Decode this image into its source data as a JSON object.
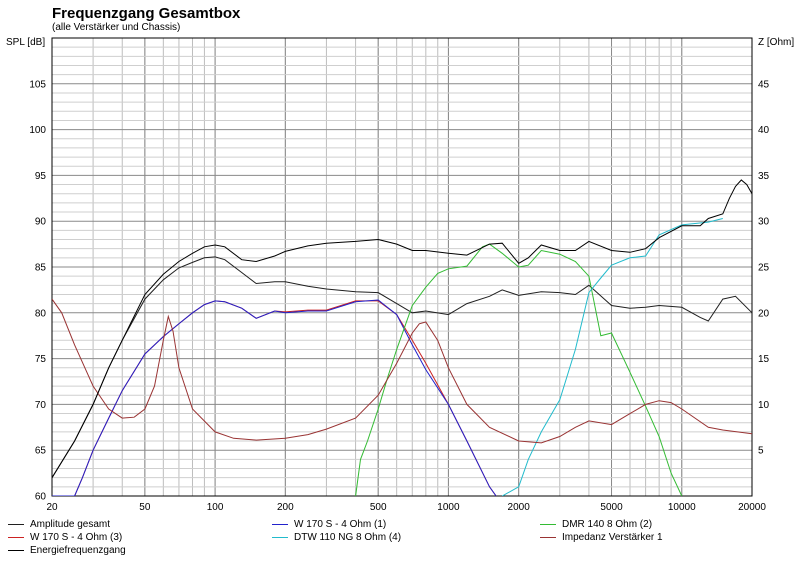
{
  "chart_data": {
    "type": "line",
    "title": "Frequenzgang Gesamtbox",
    "subtitle": "(alle Verstärker und Chassis)",
    "ylabel": "SPL [dB]",
    "y2label": "Z [Ohm]",
    "xscale": "log",
    "xlim": [
      20,
      20000
    ],
    "ylim": [
      60,
      110
    ],
    "y2lim": [
      0,
      50
    ],
    "x_ticks": [
      20,
      50,
      100,
      200,
      500,
      1000,
      2000,
      5000,
      10000,
      20000
    ],
    "x_tick_labels": [
      "20",
      "50",
      "100",
      "200",
      "500",
      "1000",
      "2000",
      "5000",
      "10000",
      "20000"
    ],
    "y_ticks": [
      60,
      65,
      70,
      75,
      80,
      85,
      90,
      95,
      100,
      105
    ],
    "y_tick_labels": [
      "60",
      "65",
      "70",
      "75",
      "80",
      "85",
      "90",
      "95",
      "100",
      "105"
    ],
    "y2_ticks": [
      5,
      10,
      15,
      20,
      25,
      30,
      35,
      40,
      45
    ],
    "y2_tick_labels": [
      "5",
      "10",
      "15",
      "20",
      "25",
      "30",
      "35",
      "40",
      "45"
    ],
    "grid": true,
    "legend_position": "bottom",
    "series": [
      {
        "name": "Amplitude gesamt",
        "color": "#202020",
        "axis": "spl",
        "x": [
          20,
          25,
          30,
          35,
          40,
          50,
          60,
          70,
          80,
          90,
          100,
          110,
          130,
          150,
          180,
          200,
          250,
          300,
          400,
          500,
          600,
          700,
          800,
          1000,
          1200,
          1500,
          1700,
          2000,
          2500,
          3000,
          3500,
          4000,
          5000,
          6000,
          7000,
          8000,
          10000,
          12000,
          13000,
          15000,
          17000,
          20000
        ],
        "y": [
          62,
          66,
          70,
          74,
          77,
          81.5,
          83.6,
          84.9,
          85.5,
          86,
          86.1,
          85.8,
          84.4,
          83.2,
          83.4,
          83.4,
          82.9,
          82.6,
          82.3,
          82.2,
          81,
          80,
          80.2,
          79.8,
          81,
          81.8,
          82.5,
          81.9,
          82.3,
          82.2,
          82,
          83,
          80.8,
          80.5,
          80.6,
          80.8,
          80.6,
          79.5,
          79.1,
          81.5,
          81.8,
          80
        ]
      },
      {
        "name": "W 170 S - 4 Ohm (3)",
        "color": "#cc2222",
        "axis": "spl",
        "x": [
          20,
          25,
          27,
          30,
          35,
          40,
          50,
          60,
          70,
          80,
          90,
          100,
          110,
          130,
          150,
          180,
          200,
          250,
          300,
          400,
          500,
          600,
          700,
          800,
          1000,
          1200,
          1500,
          1600
        ],
        "y": [
          60,
          60,
          62,
          65,
          68.5,
          71.5,
          75.5,
          77.4,
          78.8,
          80,
          80.9,
          81.3,
          81.2,
          80.5,
          79.4,
          80.2,
          80.1,
          80.3,
          80.3,
          81.3,
          81.3,
          79.8,
          77,
          74.5,
          70,
          66,
          61,
          60
        ]
      },
      {
        "name": "W 170 S - 4 Ohm (1)",
        "color": "#2222cc",
        "axis": "spl",
        "x": [
          20,
          25,
          27,
          30,
          35,
          40,
          50,
          60,
          70,
          80,
          90,
          100,
          110,
          130,
          150,
          180,
          200,
          250,
          300,
          400,
          500,
          600,
          700,
          800,
          1000,
          1200,
          1500,
          1600
        ],
        "y": [
          60,
          60,
          62,
          65,
          68.5,
          71.5,
          75.5,
          77.4,
          78.8,
          80,
          80.9,
          81.3,
          81.2,
          80.5,
          79.4,
          80.2,
          80,
          80.2,
          80.2,
          81.2,
          81.4,
          79.8,
          76.5,
          73.8,
          70,
          66,
          61,
          60
        ]
      },
      {
        "name": "DMR 140 8 Ohm (2)",
        "color": "#33bb33",
        "axis": "spl",
        "x": [
          400,
          420,
          450,
          500,
          550,
          600,
          700,
          800,
          900,
          1000,
          1200,
          1400,
          1500,
          1700,
          2000,
          2200,
          2500,
          3000,
          3500,
          4000,
          4500,
          5000,
          6000,
          7000,
          8000,
          9000,
          10000
        ],
        "y": [
          60,
          64,
          66,
          69.5,
          73,
          76,
          80.8,
          82.8,
          84.3,
          84.8,
          85.1,
          87.2,
          87.5,
          86.5,
          85,
          85.2,
          86.8,
          86.4,
          85.6,
          84,
          77.5,
          77.8,
          73.5,
          69.8,
          66.5,
          62.5,
          60
        ]
      },
      {
        "name": "DTW 110 NG 8 Ohm (4)",
        "color": "#22bbcc",
        "axis": "spl",
        "x": [
          1700,
          2000,
          2200,
          2500,
          3000,
          3500,
          4000,
          4500,
          5000,
          6000,
          7000,
          8000,
          10000,
          13000,
          15000
        ],
        "y": [
          60,
          61,
          64,
          67,
          70.5,
          76,
          82.2,
          83.8,
          85.2,
          86,
          86.2,
          88.5,
          89.6,
          89.9,
          90.3
        ]
      },
      {
        "name": "Impedanz Verstärker 1",
        "color": "#993333",
        "axis": "z",
        "x": [
          20,
          22,
          25,
          30,
          35,
          40,
          45,
          50,
          55,
          60,
          63,
          66,
          70,
          80,
          100,
          120,
          150,
          200,
          250,
          300,
          400,
          500,
          600,
          700,
          750,
          800,
          900,
          1000,
          1200,
          1500,
          2000,
          2500,
          3000,
          3500,
          4000,
          5000,
          6000,
          7000,
          8000,
          9000,
          10000,
          13000,
          15000,
          20000
        ],
        "y": [
          21.5,
          20,
          16.5,
          12,
          9.5,
          8.5,
          8.6,
          9.5,
          12,
          17,
          19.6,
          18,
          14,
          9.5,
          7,
          6.3,
          6.1,
          6.3,
          6.7,
          7.3,
          8.5,
          11,
          14.5,
          17.8,
          18.8,
          19,
          17,
          14,
          10,
          7.5,
          6,
          5.8,
          6.5,
          7.5,
          8.2,
          7.8,
          9,
          10,
          10.4,
          10.2,
          9.5,
          7.5,
          7.2,
          6.8
        ]
      },
      {
        "name": "Energiefrequenzgang",
        "color": "#000000",
        "axis": "spl",
        "x": [
          20,
          25,
          30,
          35,
          40,
          50,
          60,
          70,
          80,
          90,
          100,
          110,
          130,
          150,
          180,
          200,
          250,
          300,
          400,
          500,
          600,
          700,
          800,
          1000,
          1200,
          1500,
          1700,
          2000,
          2200,
          2500,
          3000,
          3500,
          4000,
          5000,
          6000,
          7000,
          8000,
          10000,
          12000,
          13000,
          15000,
          16000,
          17000,
          18000,
          19000,
          20000
        ],
        "y": [
          62,
          66,
          70,
          74,
          77,
          82,
          84.2,
          85.6,
          86.5,
          87.2,
          87.4,
          87.2,
          85.8,
          85.6,
          86.2,
          86.7,
          87.3,
          87.6,
          87.8,
          88,
          87.5,
          86.8,
          86.8,
          86.5,
          86.3,
          87.5,
          87.6,
          85.4,
          86,
          87.4,
          86.8,
          86.8,
          87.8,
          86.8,
          86.6,
          87,
          88.2,
          89.5,
          89.5,
          90.3,
          90.8,
          92.5,
          93.8,
          94.5,
          94,
          93
        ]
      }
    ]
  }
}
